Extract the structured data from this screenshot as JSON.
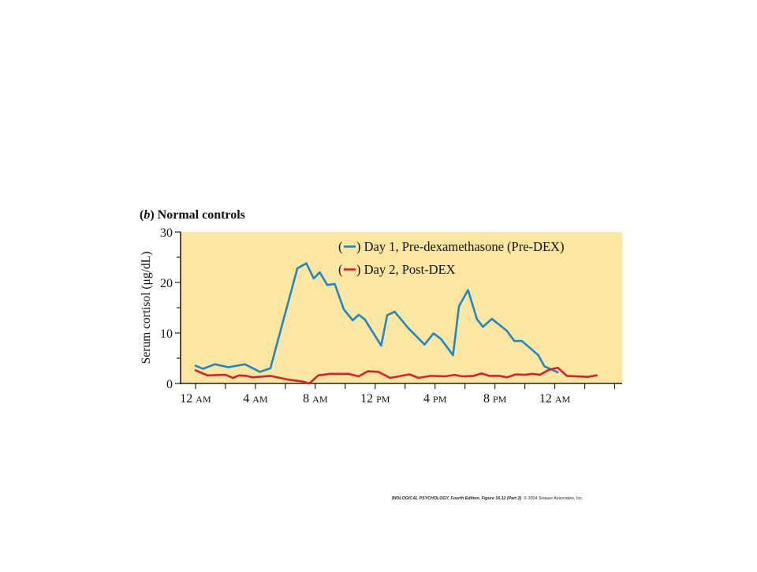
{
  "panel": {
    "letter": "b",
    "title": "Normal controls"
  },
  "chart_data": {
    "type": "line",
    "title": "Normal controls",
    "xlabel": "",
    "ylabel": "Serum cortisol (μg/dL)",
    "x_unit": "hours after 12 AM (day 0)",
    "xlim": [
      -1,
      28.5
    ],
    "ylim": [
      0,
      30
    ],
    "yticks": [
      0,
      10,
      20,
      30
    ],
    "xticks": [
      {
        "value": 0,
        "label": "12",
        "sub": "AM"
      },
      {
        "value": 4,
        "label": "4",
        "sub": "AM"
      },
      {
        "value": 8,
        "label": "8",
        "sub": "AM"
      },
      {
        "value": 12,
        "label": "12",
        "sub": "PM"
      },
      {
        "value": 16,
        "label": "4",
        "sub": "PM"
      },
      {
        "value": 20,
        "label": "8",
        "sub": "PM"
      },
      {
        "value": 24,
        "label": "12",
        "sub": "AM"
      }
    ],
    "grid": false,
    "background": "#fbe7a1",
    "legend_position": "top-right",
    "series": [
      {
        "name": "Day 1, Pre-dexamethasone (Pre-DEX)",
        "color": "#1e87c8",
        "points": [
          [
            0,
            3.5
          ],
          [
            0.5,
            2.9
          ],
          [
            1.3,
            3.8
          ],
          [
            2.2,
            3.2
          ],
          [
            3.3,
            3.8
          ],
          [
            4.3,
            2.3
          ],
          [
            5.0,
            3.0
          ],
          [
            6.8,
            22.8
          ],
          [
            7.4,
            23.8
          ],
          [
            7.9,
            20.8
          ],
          [
            8.3,
            22.0
          ],
          [
            8.8,
            19.5
          ],
          [
            9.3,
            19.7
          ],
          [
            9.9,
            14.7
          ],
          [
            10.5,
            12.5
          ],
          [
            10.9,
            13.6
          ],
          [
            11.3,
            12.7
          ],
          [
            12.4,
            7.5
          ],
          [
            12.8,
            13.5
          ],
          [
            13.3,
            14.2
          ],
          [
            14.2,
            11.0
          ],
          [
            15.3,
            7.7
          ],
          [
            15.9,
            9.9
          ],
          [
            16.4,
            8.8
          ],
          [
            17.2,
            5.6
          ],
          [
            17.6,
            15.3
          ],
          [
            18.2,
            18.5
          ],
          [
            18.8,
            12.7
          ],
          [
            19.2,
            11.2
          ],
          [
            19.8,
            12.8
          ],
          [
            20.8,
            10.4
          ],
          [
            21.3,
            8.4
          ],
          [
            21.8,
            8.4
          ],
          [
            22.9,
            5.6
          ],
          [
            23.3,
            3.4
          ],
          [
            24.2,
            2.2
          ]
        ]
      },
      {
        "name": "Day 2, Post-DEX",
        "color": "#d8222b",
        "points": [
          [
            0,
            2.6
          ],
          [
            0.8,
            1.6
          ],
          [
            2.0,
            1.7
          ],
          [
            2.5,
            1.1
          ],
          [
            2.9,
            1.6
          ],
          [
            3.4,
            1.5
          ],
          [
            3.8,
            1.2
          ],
          [
            5.0,
            1.5
          ],
          [
            6.1,
            0.8
          ],
          [
            7.1,
            0.4
          ],
          [
            7.6,
            0.0
          ],
          [
            8.2,
            1.6
          ],
          [
            9.0,
            1.9
          ],
          [
            10.2,
            1.9
          ],
          [
            10.9,
            1.4
          ],
          [
            11.5,
            2.4
          ],
          [
            12.2,
            2.3
          ],
          [
            13.0,
            1.1
          ],
          [
            14.3,
            1.8
          ],
          [
            14.9,
            1.1
          ],
          [
            15.7,
            1.5
          ],
          [
            16.7,
            1.4
          ],
          [
            17.3,
            1.7
          ],
          [
            17.8,
            1.4
          ],
          [
            18.6,
            1.5
          ],
          [
            19.1,
            2.0
          ],
          [
            19.6,
            1.5
          ],
          [
            20.3,
            1.5
          ],
          [
            20.8,
            1.2
          ],
          [
            21.4,
            1.8
          ],
          [
            22.0,
            1.7
          ],
          [
            22.5,
            1.9
          ],
          [
            23.0,
            1.7
          ],
          [
            23.6,
            2.7
          ],
          [
            24.2,
            3.1
          ],
          [
            24.8,
            1.5
          ],
          [
            26.2,
            1.3
          ],
          [
            26.8,
            1.6
          ]
        ]
      }
    ]
  },
  "caption": {
    "book": "BIOLOGICAL PSYCHOLOGY, Fourth Edition, Figure 16.12 (Part 2)",
    "copyright": "© 2004 Sinauer Associates, Inc."
  }
}
